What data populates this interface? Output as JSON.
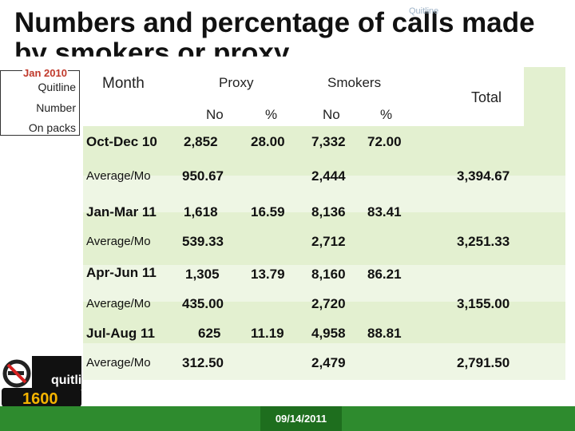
{
  "slide": {
    "title_line1": "Numbers and percentage of calls made",
    "title_line2": "by smokers or proxy",
    "faint_logo_text": "Quitline",
    "date": "09/14/2011",
    "colors": {
      "table_bg": "#e3f0d0",
      "bar": "#2e8b2e",
      "accent_red": "#c0392b"
    }
  },
  "sidebar": {
    "year": "Jan 2010",
    "line1": "Quitline",
    "line2": "Number",
    "line3": "On packs"
  },
  "table": {
    "headers": {
      "month": "Month",
      "proxy": "Proxy",
      "smokers": "Smokers",
      "total": "Total",
      "no1": "No",
      "pct1": "%",
      "no2": "No",
      "pct2": "%"
    },
    "rows": [
      {
        "month": "Oct-Dec 10",
        "proxy_no": "2,852",
        "proxy_pct": "28.00",
        "smokers_no": "7,332",
        "smokers_pct": "72.00",
        "avg_label": "Average/Mo",
        "avg_proxy": "950.67",
        "avg_smokers": "2,444",
        "avg_total": "3,394.67"
      },
      {
        "month": "Jan-Mar 11",
        "proxy_no": "1,618",
        "proxy_pct": "16.59",
        "smokers_no": "8,136",
        "smokers_pct": "83.41",
        "avg_label": "Average/Mo",
        "avg_proxy": "539.33",
        "avg_smokers": "2,712",
        "avg_total": "3,251.33"
      },
      {
        "month": "Apr-Jun 11",
        "proxy_no": "1,305",
        "proxy_pct": "13.79",
        "smokers_no": "8,160",
        "smokers_pct": "86.21",
        "avg_label": "Average/Mo",
        "avg_proxy": "435.00",
        "avg_smokers": "2,720",
        "avg_total": "3,155.00"
      },
      {
        "month": "Jul-Aug 11",
        "proxy_no": "625",
        "proxy_pct": "11.19",
        "smokers_no": "4,958",
        "smokers_pct": "88.81",
        "avg_label": "Average/Mo",
        "avg_proxy": "312.50",
        "avg_smokers": "2,479",
        "avg_total": "2,791.50"
      }
    ]
  },
  "logo": {
    "icon": "no-smoking-icon",
    "brand": "quitline",
    "number": "1600"
  }
}
